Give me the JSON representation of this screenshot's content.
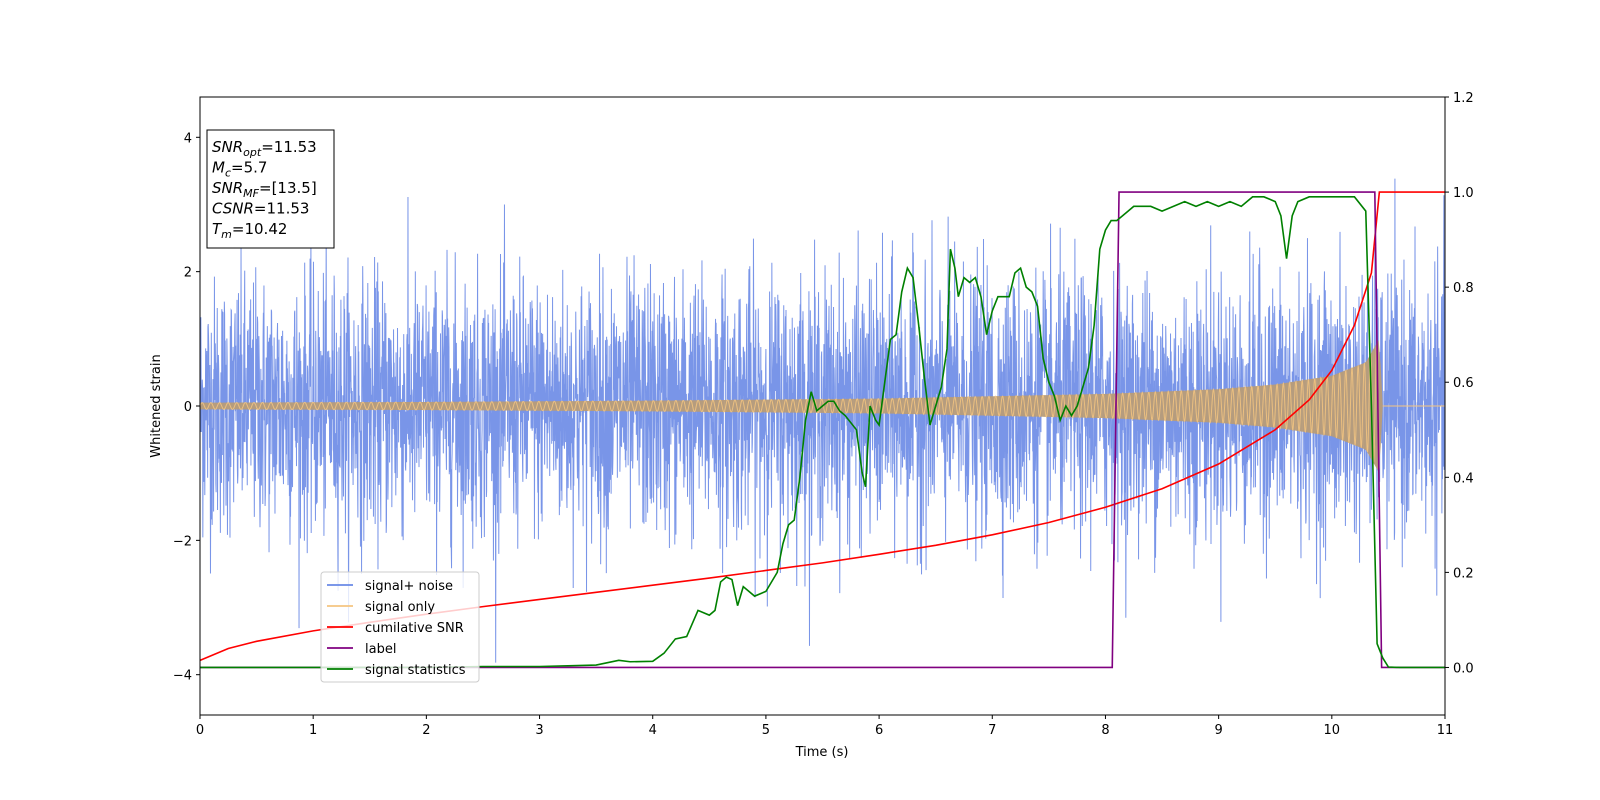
{
  "chart_data": {
    "type": "line",
    "xlabel": "Time (s)",
    "ylabel": "Whitened strain",
    "xlim": [
      0,
      11
    ],
    "ylim": [
      -4.6,
      4.6
    ],
    "y2lim": [
      -0.1,
      1.2
    ],
    "x_ticks": [
      "0",
      "1",
      "2",
      "3",
      "4",
      "5",
      "6",
      "7",
      "8",
      "9",
      "10",
      "11"
    ],
    "y_ticks": [
      "−4",
      "−2",
      "0",
      "2",
      "4"
    ],
    "y_tick_values": [
      -4,
      -2,
      0,
      2,
      4
    ],
    "y2_ticks": [
      "0.0",
      "0.2",
      "0.4",
      "0.6",
      "0.8",
      "1.0",
      "1.2"
    ],
    "y2_tick_values": [
      0.0,
      0.2,
      0.4,
      0.6,
      0.8,
      1.0,
      1.2
    ],
    "grid": false,
    "legend_position": "bottom-left",
    "annotation": {
      "lines": [
        {
          "sym": "SNR",
          "sub": "opt",
          "val": "=11.53"
        },
        {
          "sym": "M",
          "sub": "c",
          "val": "=5.7"
        },
        {
          "sym": "SNR",
          "sub": "MF",
          "val": "=[13.5]"
        },
        {
          "sym": "CSNR",
          "sub": "",
          "val": "=11.53"
        },
        {
          "sym": "T",
          "sub": "m",
          "val": "=10.42"
        }
      ]
    },
    "series": [
      {
        "name": "signal+ noise",
        "axis": "left",
        "color": "#6a8ae6",
        "kind": "noise_band",
        "typical_amplitude": [
          -1.6,
          1.6
        ],
        "peak_range": [
          -4.1,
          4.2
        ]
      },
      {
        "name": "signal only",
        "axis": "left",
        "color": "#f5c580",
        "kind": "chirp",
        "t_merger": 10.42,
        "envelope": [
          [
            0,
            0.05
          ],
          [
            2,
            0.06
          ],
          [
            4,
            0.08
          ],
          [
            6,
            0.11
          ],
          [
            8,
            0.18
          ],
          [
            9,
            0.25
          ],
          [
            9.5,
            0.32
          ],
          [
            10,
            0.45
          ],
          [
            10.3,
            0.65
          ],
          [
            10.42,
            1.0
          ],
          [
            10.45,
            0.0
          ],
          [
            11,
            0.0
          ]
        ]
      },
      {
        "name": "cumilative SNR",
        "axis": "right",
        "color": "#ff0000",
        "x": [
          0,
          0.25,
          0.5,
          1,
          1.5,
          2,
          2.5,
          3,
          3.5,
          4,
          4.5,
          5,
          5.5,
          6,
          6.5,
          7,
          7.5,
          8,
          8.5,
          9,
          9.5,
          9.8,
          10,
          10.2,
          10.35,
          10.42,
          11
        ],
        "y": [
          0.015,
          0.04,
          0.055,
          0.077,
          0.095,
          0.112,
          0.128,
          0.143,
          0.158,
          0.173,
          0.188,
          0.204,
          0.22,
          0.238,
          0.257,
          0.279,
          0.305,
          0.337,
          0.376,
          0.428,
          0.5,
          0.563,
          0.625,
          0.72,
          0.83,
          1.0,
          1.0
        ]
      },
      {
        "name": "label",
        "axis": "right",
        "color": "#800080",
        "x": [
          0,
          8.06,
          8.12,
          10.38,
          10.44,
          11
        ],
        "y": [
          0.0,
          0.0,
          1.0,
          1.0,
          0.0,
          0.0
        ]
      },
      {
        "name": "signal statistics",
        "axis": "right",
        "color": "#008000",
        "x": [
          0,
          1,
          2,
          2.5,
          3,
          3.5,
          3.6,
          3.7,
          3.8,
          4.0,
          4.1,
          4.2,
          4.3,
          4.4,
          4.5,
          4.55,
          4.6,
          4.65,
          4.7,
          4.75,
          4.8,
          4.9,
          5.0,
          5.1,
          5.15,
          5.2,
          5.25,
          5.3,
          5.35,
          5.4,
          5.45,
          5.5,
          5.55,
          5.6,
          5.65,
          5.7,
          5.8,
          5.85,
          5.88,
          5.92,
          5.97,
          6.0,
          6.05,
          6.1,
          6.15,
          6.2,
          6.25,
          6.3,
          6.35,
          6.4,
          6.45,
          6.5,
          6.55,
          6.6,
          6.63,
          6.67,
          6.7,
          6.75,
          6.8,
          6.85,
          6.9,
          6.95,
          7.0,
          7.05,
          7.1,
          7.15,
          7.2,
          7.25,
          7.3,
          7.35,
          7.4,
          7.45,
          7.5,
          7.55,
          7.6,
          7.65,
          7.7,
          7.75,
          7.8,
          7.85,
          7.9,
          7.95,
          8.0,
          8.05,
          8.1,
          8.15,
          8.2,
          8.25,
          8.3,
          8.35,
          8.4,
          8.5,
          8.6,
          8.7,
          8.8,
          8.9,
          9.0,
          9.1,
          9.2,
          9.3,
          9.4,
          9.5,
          9.55,
          9.6,
          9.65,
          9.7,
          9.8,
          9.9,
          10.0,
          10.1,
          10.2,
          10.3,
          10.35,
          10.4,
          10.45,
          10.5,
          10.6,
          11
        ],
        "y": [
          0.0,
          0.0,
          0.0,
          0.002,
          0.002,
          0.005,
          0.01,
          0.015,
          0.012,
          0.013,
          0.03,
          0.06,
          0.065,
          0.12,
          0.11,
          0.12,
          0.18,
          0.19,
          0.185,
          0.13,
          0.17,
          0.15,
          0.16,
          0.2,
          0.26,
          0.3,
          0.31,
          0.4,
          0.52,
          0.58,
          0.54,
          0.55,
          0.56,
          0.56,
          0.54,
          0.53,
          0.5,
          0.41,
          0.38,
          0.55,
          0.52,
          0.51,
          0.6,
          0.69,
          0.7,
          0.79,
          0.84,
          0.82,
          0.72,
          0.61,
          0.51,
          0.55,
          0.59,
          0.67,
          0.88,
          0.84,
          0.78,
          0.82,
          0.81,
          0.82,
          0.78,
          0.7,
          0.75,
          0.78,
          0.78,
          0.78,
          0.83,
          0.84,
          0.8,
          0.79,
          0.76,
          0.65,
          0.6,
          0.57,
          0.52,
          0.55,
          0.53,
          0.55,
          0.59,
          0.63,
          0.72,
          0.88,
          0.92,
          0.94,
          0.94,
          0.95,
          0.96,
          0.97,
          0.97,
          0.97,
          0.97,
          0.96,
          0.97,
          0.98,
          0.97,
          0.98,
          0.97,
          0.98,
          0.97,
          0.99,
          0.99,
          0.98,
          0.95,
          0.86,
          0.95,
          0.98,
          0.99,
          0.99,
          0.99,
          0.99,
          0.99,
          0.96,
          0.55,
          0.05,
          0.02,
          0.001,
          0.0,
          0.0
        ]
      }
    ]
  }
}
